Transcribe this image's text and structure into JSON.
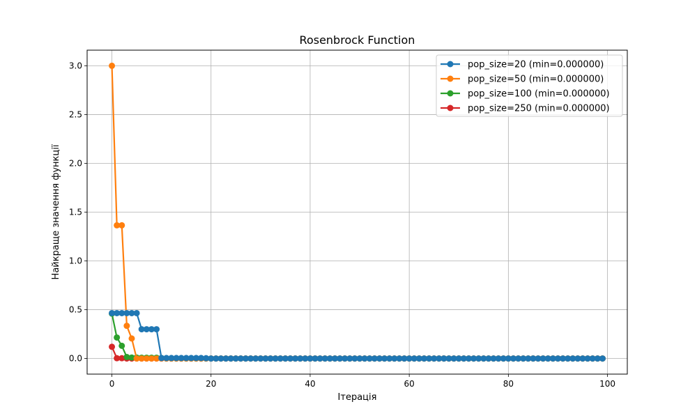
{
  "chart_data": {
    "type": "line",
    "title": "Rosenbrock Function",
    "xlabel": "Ітерація",
    "ylabel": "Найкраще значення функції",
    "xlim": [
      -5,
      104
    ],
    "ylim": [
      -0.16,
      3.16
    ],
    "xticks": [
      0,
      20,
      40,
      60,
      80,
      100
    ],
    "yticks": [
      0.0,
      0.5,
      1.0,
      1.5,
      2.0,
      2.5,
      3.0
    ],
    "xtick_labels": [
      "0",
      "20",
      "40",
      "60",
      "80",
      "100"
    ],
    "ytick_labels": [
      "0.0",
      "0.5",
      "1.0",
      "1.5",
      "2.0",
      "2.5",
      "3.0"
    ],
    "grid": true,
    "legend_position": "top-right",
    "series_order": [
      3,
      2,
      1,
      0
    ],
    "series": [
      {
        "name": "pop_size=20 (min=0.000000)",
        "color": "#1f77b4",
        "initial": [
          0.465,
          0.465,
          0.465,
          0.465,
          0.465,
          0.465,
          0.3,
          0.3,
          0.3,
          0.3,
          0.005,
          0.005,
          0.005,
          0.005,
          0.005,
          0.005,
          0.005,
          0.005,
          0.005,
          0.003
        ],
        "tail": 0.0
      },
      {
        "name": "pop_size=50 (min=0.000000)",
        "color": "#ff7f0e",
        "initial": [
          3.0,
          1.365,
          1.365,
          0.335,
          0.205,
          0.0
        ],
        "tail": 0.0
      },
      {
        "name": "pop_size=100 (min=0.000000)",
        "color": "#2ca02c",
        "initial": [
          0.46,
          0.215,
          0.13,
          0.015,
          0.01,
          0.01,
          0.008,
          0.008,
          0.008,
          0.008,
          0.005
        ],
        "tail": 0.0
      },
      {
        "name": "pop_size=250 (min=0.000000)",
        "color": "#d62728",
        "initial": [
          0.12,
          0.003,
          0.003
        ],
        "tail": 0.0
      }
    ]
  }
}
